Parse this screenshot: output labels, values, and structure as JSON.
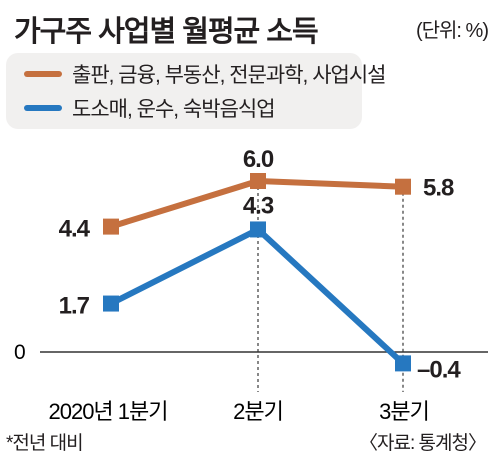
{
  "chart_data": {
    "type": "line",
    "title": "가구주 사업별 월평균 소득",
    "unit_label": "(단위: %)",
    "categories": [
      "2020년 1분기",
      "2분기",
      "3분기"
    ],
    "series": [
      {
        "name": "출판, 금융, 부동산, 전문과학, 사업시설",
        "values": [
          4.4,
          6.0,
          5.8
        ],
        "value_labels": [
          "4.4",
          "6.0",
          "5.8"
        ],
        "color": "#c5703f"
      },
      {
        "name": "도소매, 운수, 숙박음식업",
        "values": [
          1.7,
          4.3,
          -0.4
        ],
        "value_labels": [
          "1.7",
          "4.3",
          "–0.4"
        ],
        "color": "#2678c0"
      }
    ],
    "y_tick_labels": [
      {
        "value": 0,
        "label": "0"
      }
    ],
    "ylim": [
      -0.4,
      6.0
    ],
    "grid": "vertical-dashed",
    "footnote": "*전년 대비",
    "source": "〈자료: 통계청〉"
  }
}
